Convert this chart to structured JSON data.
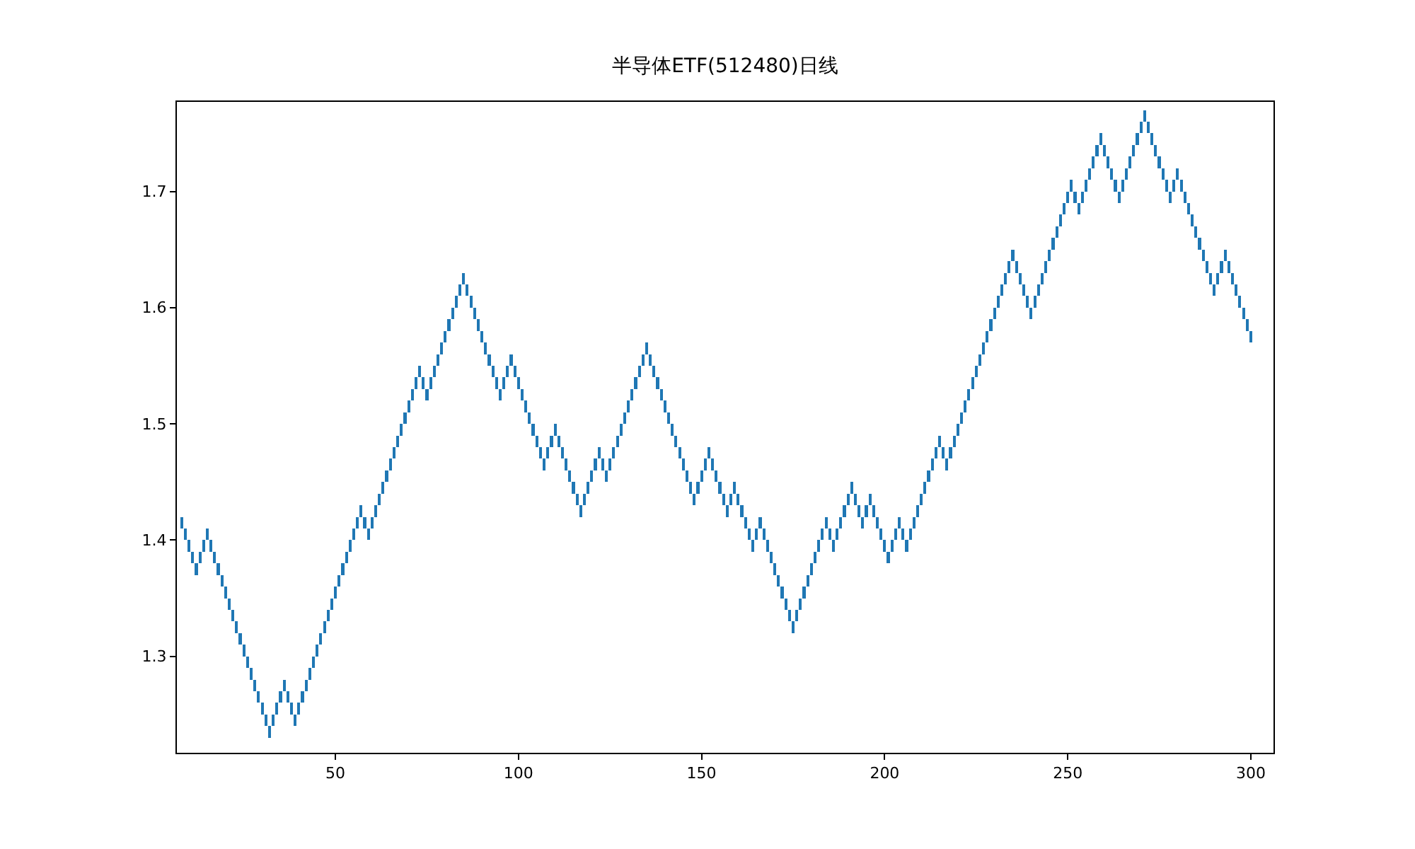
{
  "chart_data": {
    "type": "bar",
    "title": "半导体ETF(512480)日线",
    "color": "#1f77b4",
    "grid": false,
    "x": [
      8,
      9,
      10,
      11,
      12,
      13,
      14,
      15,
      16,
      17,
      18,
      19,
      20,
      21,
      22,
      23,
      24,
      25,
      26,
      27,
      28,
      29,
      30,
      31,
      32,
      33,
      34,
      35,
      36,
      37,
      38,
      39,
      40,
      41,
      42,
      43,
      44,
      45,
      46,
      47,
      48,
      49,
      50,
      51,
      52,
      53,
      54,
      55,
      56,
      57,
      58,
      59,
      60,
      61,
      62,
      63,
      64,
      65,
      66,
      67,
      68,
      69,
      70,
      71,
      72,
      73,
      74,
      75,
      76,
      77,
      78,
      79,
      80,
      81,
      82,
      83,
      84,
      85,
      86,
      87,
      88,
      89,
      90,
      91,
      92,
      93,
      94,
      95,
      96,
      97,
      98,
      99,
      100,
      101,
      102,
      103,
      104,
      105,
      106,
      107,
      108,
      109,
      110,
      111,
      112,
      113,
      114,
      115,
      116,
      117,
      118,
      119,
      120,
      121,
      122,
      123,
      124,
      125,
      126,
      127,
      128,
      129,
      130,
      131,
      132,
      133,
      134,
      135,
      136,
      137,
      138,
      139,
      140,
      141,
      142,
      143,
      144,
      145,
      146,
      147,
      148,
      149,
      150,
      151,
      152,
      153,
      154,
      155,
      156,
      157,
      158,
      159,
      160,
      161,
      162,
      163,
      164,
      165,
      166,
      167,
      168,
      169,
      170,
      171,
      172,
      173,
      174,
      175,
      176,
      177,
      178,
      179,
      180,
      181,
      182,
      183,
      184,
      185,
      186,
      187,
      188,
      189,
      190,
      191,
      192,
      193,
      194,
      195,
      196,
      197,
      198,
      199,
      200,
      201,
      202,
      203,
      204,
      205,
      206,
      207,
      208,
      209,
      210,
      211,
      212,
      213,
      214,
      215,
      216,
      217,
      218,
      219,
      220,
      221,
      222,
      223,
      224,
      225,
      226,
      227,
      228,
      229,
      230,
      231,
      232,
      233,
      234,
      235,
      236,
      237,
      238,
      239,
      240,
      241,
      242,
      243,
      244,
      245,
      246,
      247,
      248,
      249,
      250,
      251,
      252,
      253,
      254,
      255,
      256,
      257,
      258,
      259,
      260,
      261,
      262,
      263,
      264,
      265,
      266,
      267,
      268,
      269,
      270,
      271,
      272,
      273,
      274,
      275,
      276,
      277,
      278,
      279,
      280,
      281,
      282,
      283,
      284,
      285,
      286,
      287,
      288,
      289,
      290,
      291,
      292,
      293,
      294,
      295,
      296,
      297,
      298,
      299,
      300
    ],
    "base": [
      1.41,
      1.4,
      1.39,
      1.38,
      1.37,
      1.38,
      1.39,
      1.4,
      1.39,
      1.38,
      1.37,
      1.36,
      1.35,
      1.34,
      1.33,
      1.32,
      1.31,
      1.3,
      1.29,
      1.28,
      1.27,
      1.26,
      1.25,
      1.24,
      1.23,
      1.24,
      1.25,
      1.26,
      1.27,
      1.26,
      1.25,
      1.24,
      1.25,
      1.26,
      1.27,
      1.28,
      1.29,
      1.3,
      1.31,
      1.32,
      1.33,
      1.34,
      1.35,
      1.36,
      1.37,
      1.38,
      1.39,
      1.4,
      1.41,
      1.42,
      1.41,
      1.4,
      1.41,
      1.42,
      1.43,
      1.44,
      1.45,
      1.46,
      1.47,
      1.48,
      1.49,
      1.5,
      1.51,
      1.52,
      1.53,
      1.54,
      1.53,
      1.52,
      1.53,
      1.54,
      1.55,
      1.56,
      1.57,
      1.58,
      1.59,
      1.6,
      1.61,
      1.62,
      1.61,
      1.6,
      1.59,
      1.58,
      1.57,
      1.56,
      1.55,
      1.54,
      1.53,
      1.52,
      1.53,
      1.54,
      1.55,
      1.54,
      1.53,
      1.52,
      1.51,
      1.5,
      1.49,
      1.48,
      1.47,
      1.46,
      1.47,
      1.48,
      1.49,
      1.48,
      1.47,
      1.46,
      1.45,
      1.44,
      1.43,
      1.42,
      1.43,
      1.44,
      1.45,
      1.46,
      1.47,
      1.46,
      1.45,
      1.46,
      1.47,
      1.48,
      1.49,
      1.5,
      1.51,
      1.52,
      1.53,
      1.54,
      1.55,
      1.56,
      1.55,
      1.54,
      1.53,
      1.52,
      1.51,
      1.5,
      1.49,
      1.48,
      1.47,
      1.46,
      1.45,
      1.44,
      1.43,
      1.44,
      1.45,
      1.46,
      1.47,
      1.46,
      1.45,
      1.44,
      1.43,
      1.42,
      1.43,
      1.44,
      1.43,
      1.42,
      1.41,
      1.4,
      1.39,
      1.4,
      1.41,
      1.4,
      1.39,
      1.38,
      1.37,
      1.36,
      1.35,
      1.34,
      1.33,
      1.32,
      1.33,
      1.34,
      1.35,
      1.36,
      1.37,
      1.38,
      1.39,
      1.4,
      1.41,
      1.4,
      1.39,
      1.4,
      1.41,
      1.42,
      1.43,
      1.44,
      1.43,
      1.42,
      1.41,
      1.42,
      1.43,
      1.42,
      1.41,
      1.4,
      1.39,
      1.38,
      1.39,
      1.4,
      1.41,
      1.4,
      1.39,
      1.4,
      1.41,
      1.42,
      1.43,
      1.44,
      1.45,
      1.46,
      1.47,
      1.48,
      1.47,
      1.46,
      1.47,
      1.48,
      1.49,
      1.5,
      1.51,
      1.52,
      1.53,
      1.54,
      1.55,
      1.56,
      1.57,
      1.58,
      1.59,
      1.6,
      1.61,
      1.62,
      1.63,
      1.64,
      1.63,
      1.62,
      1.61,
      1.6,
      1.59,
      1.6,
      1.61,
      1.62,
      1.63,
      1.64,
      1.65,
      1.66,
      1.67,
      1.68,
      1.69,
      1.7,
      1.69,
      1.68,
      1.69,
      1.7,
      1.71,
      1.72,
      1.73,
      1.74,
      1.73,
      1.72,
      1.71,
      1.7,
      1.69,
      1.7,
      1.71,
      1.72,
      1.73,
      1.74,
      1.75,
      1.76,
      1.75,
      1.74,
      1.73,
      1.72,
      1.71,
      1.7,
      1.69,
      1.7,
      1.71,
      1.7,
      1.69,
      1.68,
      1.67,
      1.66,
      1.65,
      1.64,
      1.63,
      1.62,
      1.61,
      1.62,
      1.63,
      1.64,
      1.63,
      1.62,
      1.61,
      1.6,
      1.59,
      1.58,
      1.57
    ],
    "values": [
      0.01,
      0.01,
      0.01,
      0.01,
      0.01,
      0.01,
      0.01,
      0.01,
      0.01,
      0.01,
      0.01,
      0.01,
      0.01,
      0.01,
      0.01,
      0.01,
      0.01,
      0.01,
      0.01,
      0.01,
      0.01,
      0.01,
      0.01,
      0.01,
      0.01,
      0.01,
      0.01,
      0.01,
      0.01,
      0.01,
      0.01,
      0.01,
      0.01,
      0.01,
      0.01,
      0.01,
      0.01,
      0.01,
      0.01,
      0.01,
      0.01,
      0.01,
      0.01,
      0.01,
      0.01,
      0.01,
      0.01,
      0.01,
      0.01,
      0.01,
      0.01,
      0.01,
      0.01,
      0.01,
      0.01,
      0.01,
      0.01,
      0.01,
      0.01,
      0.01,
      0.01,
      0.01,
      0.01,
      0.01,
      0.01,
      0.01,
      0.01,
      0.01,
      0.01,
      0.01,
      0.01,
      0.01,
      0.01,
      0.01,
      0.01,
      0.01,
      0.01,
      0.01,
      0.01,
      0.01,
      0.01,
      0.01,
      0.01,
      0.01,
      0.01,
      0.01,
      0.01,
      0.01,
      0.01,
      0.01,
      0.01,
      0.01,
      0.01,
      0.01,
      0.01,
      0.01,
      0.01,
      0.01,
      0.01,
      0.01,
      0.01,
      0.01,
      0.01,
      0.01,
      0.01,
      0.01,
      0.01,
      0.01,
      0.01,
      0.01,
      0.01,
      0.01,
      0.01,
      0.01,
      0.01,
      0.01,
      0.01,
      0.01,
      0.01,
      0.01,
      0.01,
      0.01,
      0.01,
      0.01,
      0.01,
      0.01,
      0.01,
      0.01,
      0.01,
      0.01,
      0.01,
      0.01,
      0.01,
      0.01,
      0.01,
      0.01,
      0.01,
      0.01,
      0.01,
      0.01,
      0.01,
      0.01,
      0.01,
      0.01,
      0.01,
      0.01,
      0.01,
      0.01,
      0.01,
      0.01,
      0.01,
      0.01,
      0.01,
      0.01,
      0.01,
      0.01,
      0.01,
      0.01,
      0.01,
      0.01,
      0.01,
      0.01,
      0.01,
      0.01,
      0.01,
      0.01,
      0.01,
      0.01,
      0.01,
      0.01,
      0.01,
      0.01,
      0.01,
      0.01,
      0.01,
      0.01,
      0.01,
      0.01,
      0.01,
      0.01,
      0.01,
      0.01,
      0.01,
      0.01,
      0.01,
      0.01,
      0.01,
      0.01,
      0.01,
      0.01,
      0.01,
      0.01,
      0.01,
      0.01,
      0.01,
      0.01,
      0.01,
      0.01,
      0.01,
      0.01,
      0.01,
      0.01,
      0.01,
      0.01,
      0.01,
      0.01,
      0.01,
      0.01,
      0.01,
      0.01,
      0.01,
      0.01,
      0.01,
      0.01,
      0.01,
      0.01,
      0.01,
      0.01,
      0.01,
      0.01,
      0.01,
      0.01,
      0.01,
      0.01,
      0.01,
      0.01,
      0.01,
      0.01,
      0.01,
      0.01,
      0.01,
      0.01,
      0.01,
      0.01,
      0.01,
      0.01,
      0.01,
      0.01,
      0.01,
      0.01,
      0.01,
      0.01,
      0.01,
      0.01,
      0.01,
      0.01,
      0.01,
      0.01,
      0.01,
      0.01,
      0.01,
      0.01,
      0.01,
      0.01,
      0.01,
      0.01,
      0.01,
      0.01,
      0.01,
      0.01,
      0.01,
      0.01,
      0.01,
      0.01,
      0.01,
      0.01,
      0.01,
      0.01,
      0.01,
      0.01,
      0.01,
      0.01,
      0.01,
      0.01,
      0.01,
      0.01,
      0.01,
      0.01,
      0.01,
      0.01,
      0.01,
      0.01,
      0.01,
      0.01,
      0.01,
      0.01,
      0.01,
      0.01,
      0.01,
      0.01,
      0.01,
      0.01,
      0.01
    ],
    "xlim": [
      6.7,
      306.2
    ],
    "xticks": [
      50,
      100,
      150,
      200,
      250,
      300
    ],
    "ylim": [
      1.217,
      1.777
    ],
    "yticks": [
      1.3,
      1.4,
      1.5,
      1.6,
      1.7
    ]
  }
}
